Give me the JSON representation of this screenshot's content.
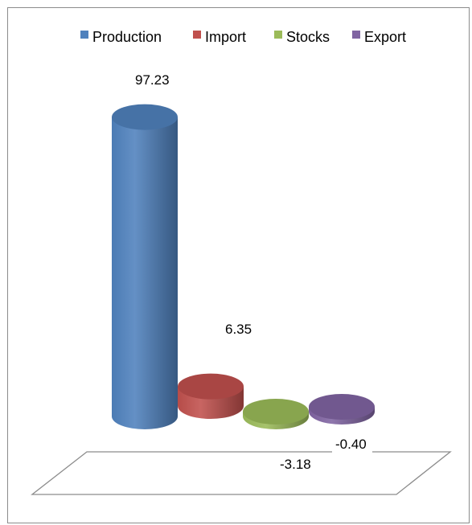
{
  "chart_data": {
    "type": "bar",
    "style": "3d-cylinder",
    "categories": [
      "Production",
      "Import",
      "Stocks",
      "Export"
    ],
    "values": [
      97.23,
      6.35,
      -3.18,
      -0.4
    ],
    "data_labels": [
      "97.23",
      "6.35",
      "-3.18",
      "-0.40"
    ],
    "series": [
      {
        "name": "Production",
        "value": 97.23,
        "color": "#4F81BD"
      },
      {
        "name": "Import",
        "value": 6.35,
        "color": "#C0504D"
      },
      {
        "name": "Stocks",
        "value": -3.18,
        "color": "#9BBB59"
      },
      {
        "name": "Export",
        "value": -0.4,
        "color": "#8064A2"
      }
    ],
    "title": "",
    "xlabel": "",
    "ylabel": "",
    "legend_position": "top",
    "grid": false,
    "axis_visible": false,
    "floor_visible": true
  }
}
